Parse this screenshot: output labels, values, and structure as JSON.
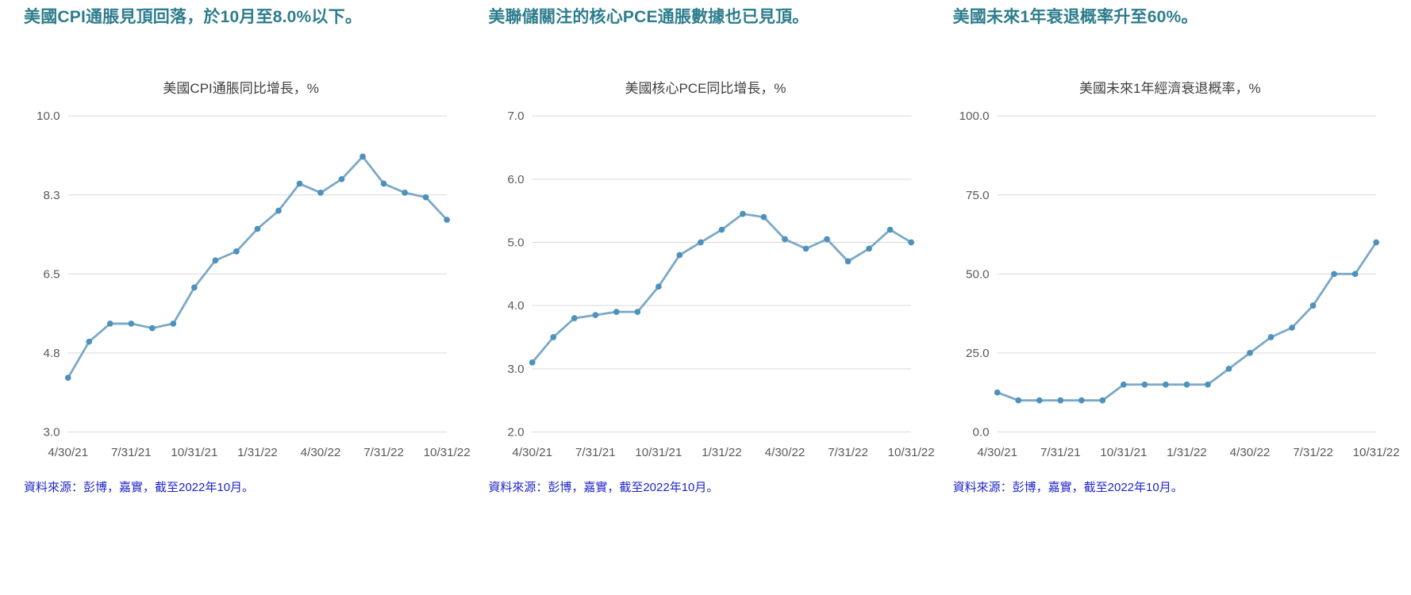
{
  "colors": {
    "headline": "#2d7d8d",
    "source": "#1f25c8",
    "title_text": "#3f3f3f",
    "axis_text": "#595959",
    "grid": "#d9d9d9",
    "line": "#7caac6",
    "marker": "#4d92be"
  },
  "panels": [
    {
      "headline": "美國CPI通脹見頂回落，於10月至8.0%以下。",
      "source": "資料來源：彭博，嘉實，截至2022年10月。"
    },
    {
      "headline": "美聯儲關注的核心PCE通脹數據也已見頂。",
      "source": "資料來源：彭博，嘉實，截至2022年10月。"
    },
    {
      "headline": "美國未來1年衰退概率升至60%。",
      "source": "資料來源：彭博，嘉實，截至2022年10月。"
    }
  ],
  "chart_data": [
    {
      "type": "line",
      "title": "美國CPI通脹同比增長，%",
      "series_name": "美國CPI通脹同比增長",
      "grid": "horizontal",
      "legend": "none",
      "x_dates": [
        "4/30/21",
        "5/31/21",
        "6/30/21",
        "7/31/21",
        "8/31/21",
        "9/30/21",
        "10/31/21",
        "11/30/21",
        "12/31/21",
        "1/31/22",
        "2/28/22",
        "3/31/22",
        "4/30/22",
        "5/31/22",
        "6/30/22",
        "7/31/22",
        "8/31/22",
        "9/30/22",
        "10/31/22"
      ],
      "values": [
        4.2,
        5.0,
        5.4,
        5.4,
        5.3,
        5.4,
        6.2,
        6.8,
        7.0,
        7.5,
        7.9,
        8.5,
        8.3,
        8.6,
        9.1,
        8.5,
        8.3,
        8.2,
        7.7
      ],
      "x_range": [
        0,
        18
      ],
      "x_tick_positions": [
        0,
        3,
        6,
        9,
        12,
        15,
        18
      ],
      "x_tick_labels": [
        "4/30/21",
        "7/31/21",
        "10/31/21",
        "1/31/22",
        "4/30/22",
        "7/31/22",
        "10/31/22"
      ],
      "y_range": [
        3.0,
        10.0
      ],
      "y_ticks": [
        {
          "label": "10.0",
          "value": 10.0
        },
        {
          "label": "8.3",
          "value": 8.25
        },
        {
          "label": "6.5",
          "value": 6.5
        },
        {
          "label": "4.8",
          "value": 4.75
        },
        {
          "label": "3.0",
          "value": 3.0
        }
      ]
    },
    {
      "type": "line",
      "title": "美國核心PCE同比增長，%",
      "series_name": "美國核心PCE同比增長",
      "grid": "horizontal",
      "legend": "none",
      "x_dates": [
        "4/30/21",
        "5/31/21",
        "6/30/21",
        "7/31/21",
        "8/31/21",
        "9/30/21",
        "10/31/21",
        "11/30/21",
        "12/31/21",
        "1/31/22",
        "2/28/22",
        "3/31/22",
        "4/30/22",
        "5/31/22",
        "6/30/22",
        "7/31/22",
        "8/31/22",
        "9/30/22",
        "10/31/22"
      ],
      "values": [
        3.1,
        3.5,
        3.8,
        3.85,
        3.9,
        3.9,
        4.3,
        4.8,
        5.0,
        5.2,
        5.45,
        5.4,
        5.05,
        4.9,
        5.05,
        4.7,
        4.9,
        5.2,
        5.0
      ],
      "x_range": [
        0,
        18
      ],
      "x_tick_positions": [
        0,
        3,
        6,
        9,
        12,
        15,
        18
      ],
      "x_tick_labels": [
        "4/30/21",
        "7/31/21",
        "10/31/21",
        "1/31/22",
        "4/30/22",
        "7/31/22",
        "10/31/22"
      ],
      "y_range": [
        2.0,
        7.0
      ],
      "y_ticks": [
        {
          "label": "7.0",
          "value": 7.0
        },
        {
          "label": "6.0",
          "value": 6.0
        },
        {
          "label": "5.0",
          "value": 5.0
        },
        {
          "label": "4.0",
          "value": 4.0
        },
        {
          "label": "3.0",
          "value": 3.0
        },
        {
          "label": "2.0",
          "value": 2.0
        }
      ]
    },
    {
      "type": "line",
      "title": "美國未來1年經濟衰退概率，%",
      "series_name": "美國未來1年經濟衰退概率",
      "grid": "horizontal",
      "legend": "none",
      "x_dates": [
        "4/30/21",
        "5/31/21",
        "6/30/21",
        "7/31/21",
        "8/31/21",
        "9/30/21",
        "10/31/21",
        "11/30/21",
        "12/31/21",
        "1/31/22",
        "2/28/22",
        "3/31/22",
        "4/30/22",
        "5/31/22",
        "6/30/22",
        "7/31/22",
        "8/31/22",
        "9/30/22",
        "10/31/22"
      ],
      "values": [
        12.5,
        10,
        10,
        10,
        10,
        10,
        15,
        15,
        15,
        15,
        15,
        20,
        25,
        30,
        33,
        40,
        50,
        50,
        60
      ],
      "x_range": [
        0,
        18
      ],
      "x_tick_positions": [
        0,
        3,
        6,
        9,
        12,
        15,
        18
      ],
      "x_tick_labels": [
        "4/30/21",
        "7/31/21",
        "10/31/21",
        "1/31/22",
        "4/30/22",
        "7/31/22",
        "10/31/22"
      ],
      "y_range": [
        0.0,
        100.0
      ],
      "y_ticks": [
        {
          "label": "100.0",
          "value": 100.0
        },
        {
          "label": "75.0",
          "value": 75.0
        },
        {
          "label": "50.0",
          "value": 50.0
        },
        {
          "label": "25.0",
          "value": 25.0
        },
        {
          "label": "0.0",
          "value": 0.0
        }
      ]
    }
  ]
}
